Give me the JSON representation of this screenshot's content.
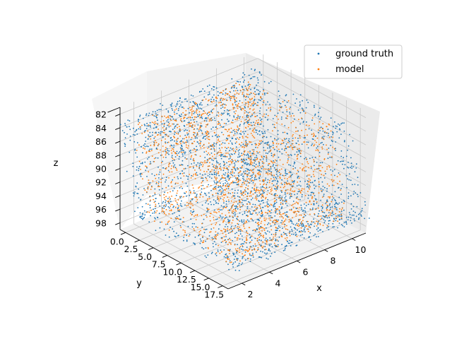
{
  "chart_data": {
    "type": "scatter",
    "projection": "3d",
    "title": "",
    "xlabel": "x",
    "ylabel": "y",
    "zlabel": "z",
    "xlim": [
      1,
      11
    ],
    "ylim": [
      -1,
      18.5
    ],
    "zlim": [
      81,
      99
    ],
    "z_inverted": true,
    "x_ticks": [
      "2",
      "4",
      "6",
      "8",
      "10"
    ],
    "y_ticks": [
      "0.0",
      "2.5",
      "5.0",
      "7.5",
      "10.0",
      "12.5",
      "15.0",
      "17.5"
    ],
    "z_ticks": [
      "82",
      "84",
      "86",
      "88",
      "90",
      "92",
      "94",
      "96",
      "98"
    ],
    "grid": true,
    "legend_position": "top-right",
    "series": [
      {
        "name": "ground truth",
        "color": "#1f77b4",
        "shape": "frame",
        "x_range": [
          1,
          11
        ],
        "y_range": [
          0,
          17.5
        ],
        "z_range": [
          82,
          98
        ],
        "point_count": 2400
      },
      {
        "name": "model",
        "color": "#ff7f0e",
        "shape": "frame",
        "x_range": [
          1.5,
          10
        ],
        "y_range": [
          1,
          16.5
        ],
        "z_range": [
          82.5,
          97.5
        ],
        "point_count": 1700
      }
    ]
  }
}
